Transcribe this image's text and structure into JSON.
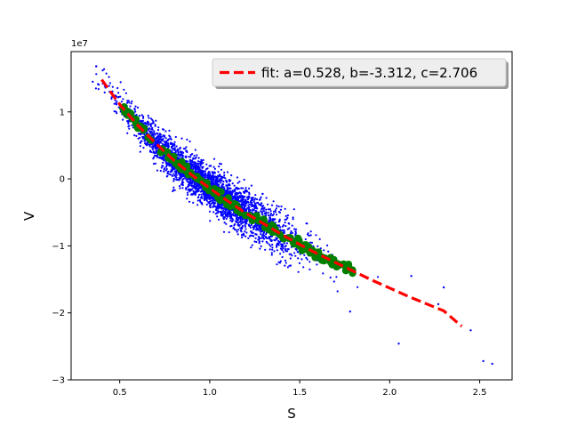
{
  "chart_data": {
    "type": "scatter",
    "xlabel": "S",
    "ylabel": "V",
    "y_offset_label": "1e7",
    "xlim": [
      0.23,
      2.68
    ],
    "ylim": [
      -3.0,
      1.9
    ],
    "x_ticks": [
      0.5,
      1.0,
      1.5,
      2.0,
      2.5
    ],
    "x_tick_labels": [
      "0.5",
      "1.0",
      "1.5",
      "2.0",
      "2.5"
    ],
    "y_ticks": [
      -3,
      -2,
      -1,
      0,
      1
    ],
    "y_tick_labels": [
      "−3",
      "−2",
      "−1",
      "0",
      "1"
    ],
    "grid": false,
    "legend_position": "top-right",
    "series": [
      {
        "kind": "scatter",
        "color": "#0000ff",
        "description_points": "dense point cloud around fitted curve",
        "outliers": [
          [
            0.35,
            1.45
          ],
          [
            0.37,
            1.68
          ],
          [
            2.45,
            -2.26
          ],
          [
            2.52,
            -2.72
          ],
          [
            2.57,
            -2.76
          ],
          [
            2.05,
            -2.46
          ],
          [
            1.78,
            -1.98
          ],
          [
            2.27,
            -1.87
          ],
          [
            2.3,
            -1.62
          ],
          [
            2.12,
            -1.45
          ]
        ]
      },
      {
        "kind": "scatter",
        "color": "#008000",
        "x_range": [
          0.5,
          1.8
        ]
      },
      {
        "kind": "line",
        "name": "fit: a=0.528, b=-3.312, c=2.706",
        "color": "#ff0000",
        "dash": true,
        "x": [
          0.4,
          0.5,
          0.6,
          0.7,
          0.8,
          0.9,
          1.0,
          1.1,
          1.2,
          1.3,
          1.4,
          1.5,
          1.6,
          1.7,
          1.8,
          1.9,
          2.0,
          2.1,
          2.2,
          2.3,
          2.4
        ],
        "y": [
          1.48,
          1.11,
          0.8,
          0.53,
          0.28,
          0.06,
          -0.14,
          -0.33,
          -0.51,
          -0.67,
          -0.83,
          -0.98,
          -1.12,
          -1.25,
          -1.38,
          -1.51,
          -1.63,
          -1.75,
          -1.86,
          -1.97,
          -2.2
        ]
      }
    ]
  }
}
